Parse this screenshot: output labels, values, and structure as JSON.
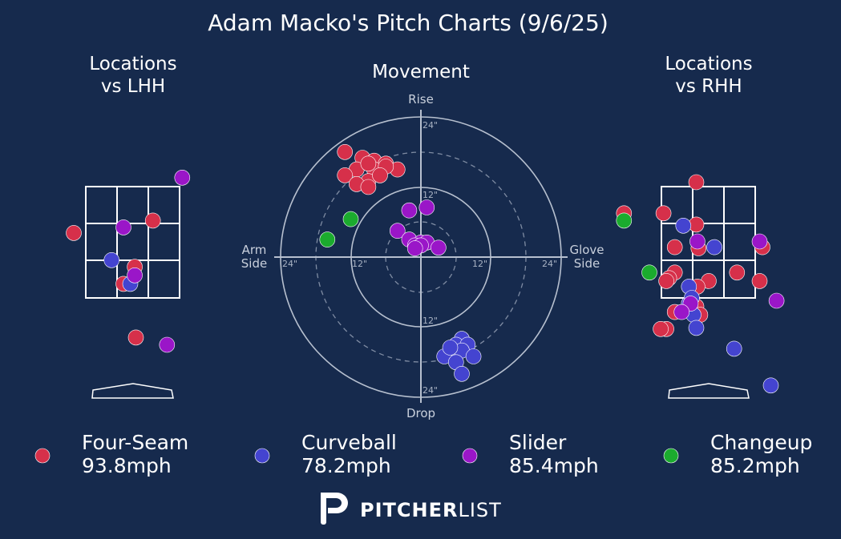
{
  "colors": {
    "background": "#162a4d",
    "four_seam": "#d6304a",
    "curveball": "#4444d0",
    "slider": "#9a16c8",
    "changeup": "#1bab2e"
  },
  "title": "Adam Macko's Pitch Charts (9/6/25)",
  "panels": {
    "lhh_title_1": "Locations",
    "lhh_title_2": "vs LHH",
    "movement_title": "Movement",
    "rhh_title_1": "Locations",
    "rhh_title_2": "vs RHH"
  },
  "movement_labels": {
    "rise": "Rise",
    "drop": "Drop",
    "arm_1": "Arm",
    "arm_2": "Side",
    "glove_1": "Glove",
    "glove_2": "Side",
    "ring_12": "12\"",
    "ring_24": "24\""
  },
  "legend": [
    {
      "name": "Four-Seam",
      "speed": "93.8mph",
      "color": "#d6304a"
    },
    {
      "name": "Curveball",
      "speed": "78.2mph",
      "color": "#4444d0"
    },
    {
      "name": "Slider",
      "speed": "85.4mph",
      "color": "#9a16c8"
    },
    {
      "name": "Changeup",
      "speed": "85.2mph",
      "color": "#1bab2e"
    }
  ],
  "brand": {
    "bold": "PITCHER",
    "light": "LIST"
  },
  "chart_data": [
    {
      "type": "scatter",
      "name": "Locations vs LHH",
      "x_range": [
        -2.5,
        2.5
      ],
      "y_range": [
        -0.5,
        5.2
      ],
      "strike_zone": {
        "x": [
          -0.83,
          0.83
        ],
        "y": [
          1.5,
          3.5
        ]
      },
      "series": [
        {
          "name": "Four-Seam",
          "points": [
            [
              -1.05,
              3.15
            ],
            [
              0.35,
              3.37
            ],
            [
              0.03,
              2.55
            ],
            [
              -0.17,
              2.25
            ],
            [
              0.05,
              1.3
            ]
          ]
        },
        {
          "name": "Curveball",
          "points": [
            [
              -0.38,
              2.67
            ],
            [
              -0.05,
              2.25
            ]
          ]
        },
        {
          "name": "Slider",
          "points": [
            [
              0.87,
              4.13
            ],
            [
              -0.17,
              3.25
            ],
            [
              0.03,
              2.4
            ],
            [
              0.6,
              1.17
            ]
          ]
        }
      ]
    },
    {
      "type": "scatter",
      "name": "Movement",
      "x_range": [
        -24,
        24
      ],
      "y_range": [
        -24,
        24
      ],
      "rings": [
        6,
        12,
        18,
        24
      ],
      "series": [
        {
          "name": "Four-Seam",
          "points": [
            [
              -13,
              18
            ],
            [
              -10,
              17
            ],
            [
              -8,
              16.5
            ],
            [
              -6,
              16
            ],
            [
              -4,
              15
            ],
            [
              -11,
              15
            ],
            [
              -8,
              15
            ],
            [
              -6,
              15.5
            ],
            [
              -13,
              14
            ],
            [
              -9,
              13
            ],
            [
              -7,
              14
            ],
            [
              -11,
              12.5
            ],
            [
              -9,
              12
            ],
            [
              -9,
              16
            ]
          ]
        },
        {
          "name": "Curveball",
          "points": [
            [
              7,
              -14
            ],
            [
              6,
              -15
            ],
            [
              8,
              -15
            ],
            [
              5,
              -16
            ],
            [
              7,
              -16
            ],
            [
              9,
              -17
            ],
            [
              4,
              -17
            ],
            [
              6,
              -18
            ],
            [
              7,
              -20
            ],
            [
              5,
              -15.5
            ]
          ]
        },
        {
          "name": "Slider",
          "points": [
            [
              -2,
              8
            ],
            [
              1,
              8.5
            ],
            [
              -4,
              4.5
            ],
            [
              -2,
              3
            ],
            [
              0,
              2.5
            ],
            [
              -1,
              2
            ],
            [
              1,
              2.5
            ],
            [
              0,
              2
            ],
            [
              3,
              1.6
            ],
            [
              -1,
              1.5
            ]
          ]
        },
        {
          "name": "Changeup",
          "points": [
            [
              -12,
              6.5
            ],
            [
              -16,
              3
            ]
          ]
        }
      ]
    },
    {
      "type": "scatter",
      "name": "Locations vs RHH",
      "x_range": [
        -2.5,
        2.5
      ],
      "y_range": [
        -0.5,
        5.2
      ],
      "strike_zone": {
        "x": [
          -0.83,
          0.83
        ],
        "y": [
          1.5,
          3.5
        ]
      },
      "series": [
        {
          "name": "Four-Seam",
          "points": [
            [
              -1.5,
              3.5
            ],
            [
              -0.8,
              3.5
            ],
            [
              -0.22,
              4.05
            ],
            [
              -0.22,
              3.3
            ],
            [
              -0.6,
              2.9
            ],
            [
              -0.18,
              2.88
            ],
            [
              -0.6,
              2.45
            ],
            [
              -0.7,
              2.35
            ],
            [
              0,
              2.3
            ],
            [
              -0.2,
              2.2
            ],
            [
              -0.75,
              2.3
            ],
            [
              0.5,
              2.45
            ],
            [
              0.9,
              2.3
            ],
            [
              0.95,
              2.9
            ],
            [
              -0.22,
              1.85
            ],
            [
              -0.6,
              1.75
            ],
            [
              -0.75,
              1.45
            ],
            [
              -0.85,
              1.45
            ],
            [
              -0.15,
              1.7
            ]
          ]
        },
        {
          "name": "Curveball",
          "points": [
            [
              -0.45,
              3.28
            ],
            [
              0.1,
              2.9
            ],
            [
              -0.35,
              2.2
            ],
            [
              -0.35,
              1.9
            ],
            [
              -0.27,
              1.7
            ],
            [
              -0.22,
              1.47
            ],
            [
              0.45,
              1.1
            ],
            [
              1.1,
              0.45
            ],
            [
              -0.3,
              2.0
            ]
          ]
        },
        {
          "name": "Slider",
          "points": [
            [
              0.9,
              3.0
            ],
            [
              -0.2,
              3.0
            ],
            [
              1.2,
              1.95
            ],
            [
              -0.32,
              1.9
            ],
            [
              -0.48,
              1.75
            ]
          ]
        },
        {
          "name": "Changeup",
          "points": [
            [
              -1.05,
              2.45
            ],
            [
              -1.5,
              3.37
            ]
          ]
        }
      ]
    }
  ]
}
